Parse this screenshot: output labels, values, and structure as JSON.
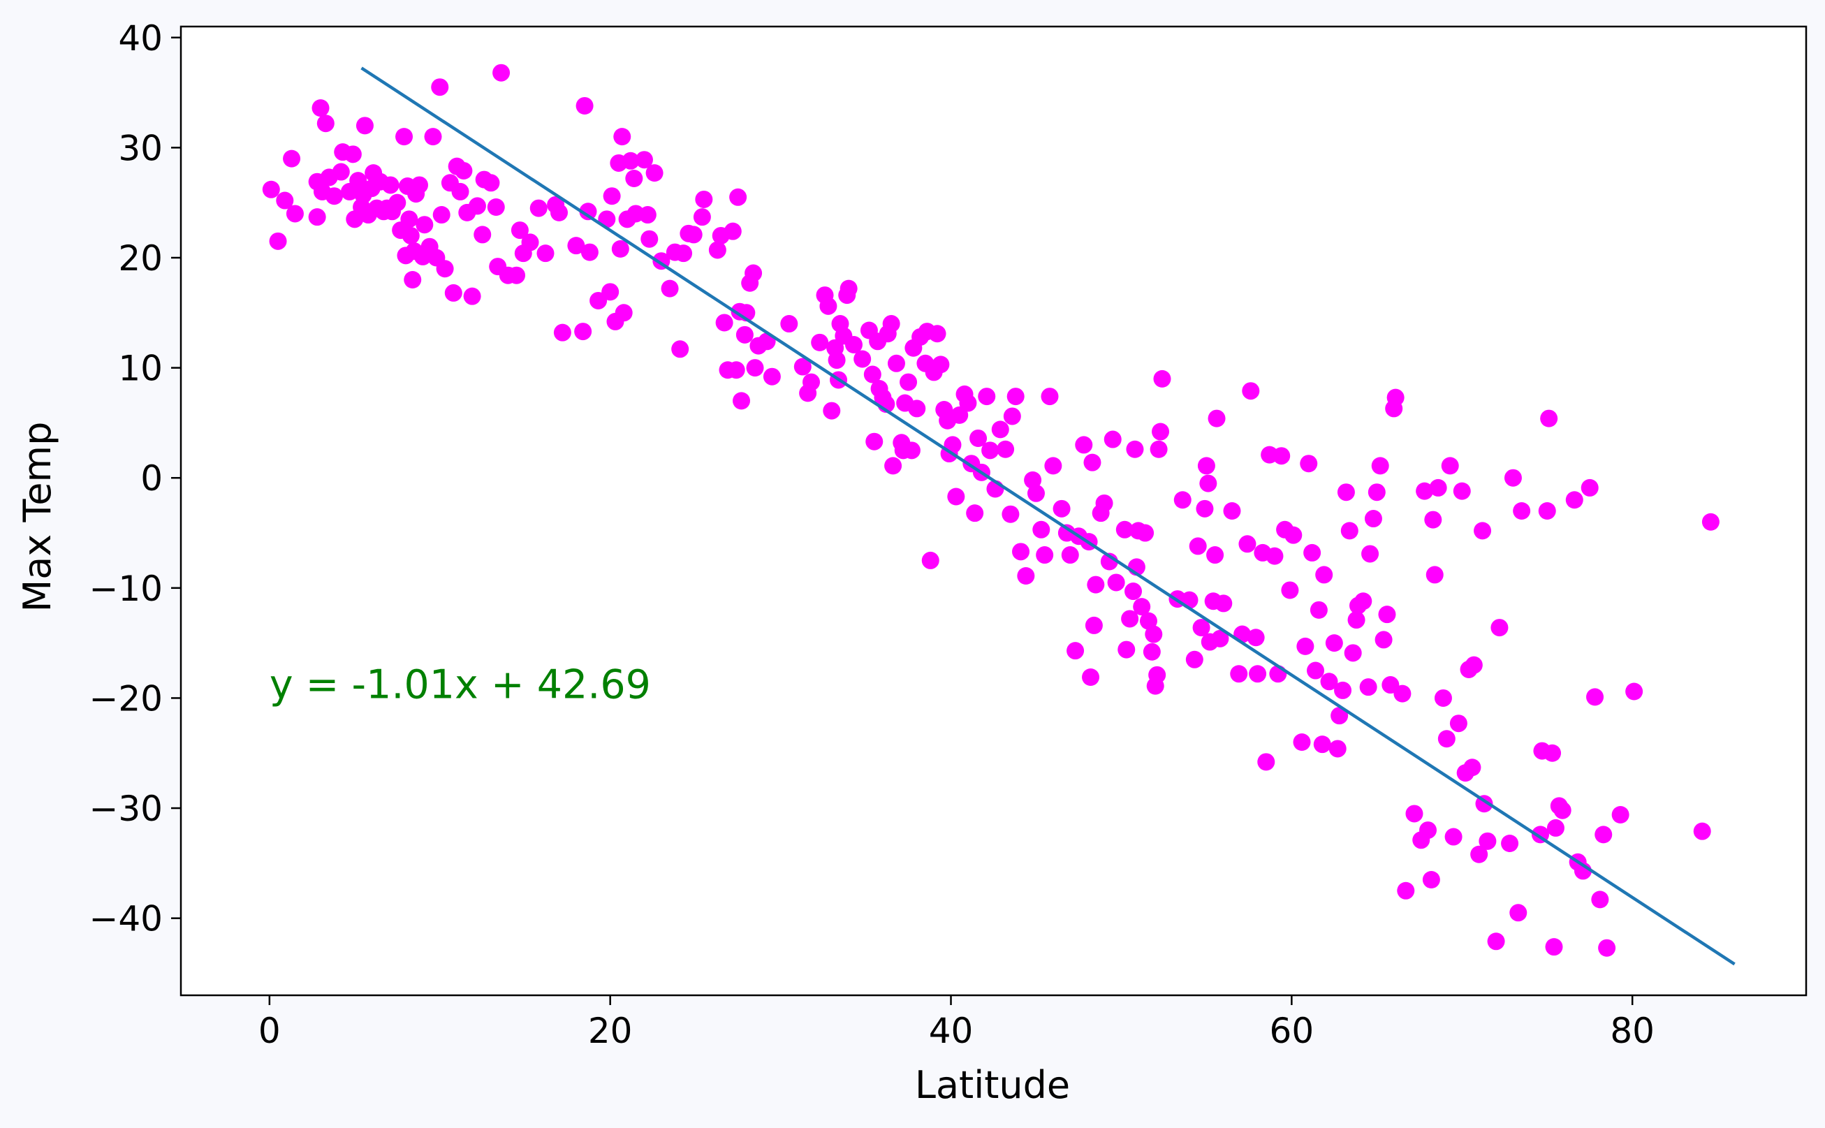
{
  "chart_data": {
    "type": "scatter",
    "title": "",
    "xlabel": "Latitude",
    "ylabel": "Max Temp",
    "xlim": [
      -5.2,
      90.2
    ],
    "ylim": [
      -47.0,
      41.0
    ],
    "xticks": [
      0,
      20,
      40,
      60,
      80
    ],
    "yticks": [
      40,
      30,
      20,
      10,
      0,
      -10,
      -20,
      -30,
      -40
    ],
    "grid": false,
    "legend": "none",
    "colors": {
      "points": "#ff00ff",
      "line": "#1f77b4",
      "annotation": "#008000",
      "background": "#f8f9fd",
      "plot_background": "#ffffff"
    },
    "annotation": {
      "text": "y = -1.01x + 42.69",
      "x": 0,
      "y": -20
    },
    "regression": {
      "slope": -1.01,
      "intercept": 42.69,
      "x_start": 5.4,
      "x_end": 86.0
    },
    "points": [
      [
        0.1,
        26.2
      ],
      [
        0.5,
        21.5
      ],
      [
        0.9,
        25.2
      ],
      [
        1.3,
        29.0
      ],
      [
        1.5,
        24.0
      ],
      [
        2.8,
        23.7
      ],
      [
        2.8,
        26.9
      ],
      [
        3.0,
        33.6
      ],
      [
        3.1,
        26.0
      ],
      [
        3.3,
        32.2
      ],
      [
        3.5,
        27.3
      ],
      [
        3.8,
        25.6
      ],
      [
        4.2,
        27.8
      ],
      [
        4.3,
        29.6
      ],
      [
        4.7,
        26.0
      ],
      [
        4.9,
        29.4
      ],
      [
        5.0,
        23.5
      ],
      [
        5.2,
        27.0
      ],
      [
        5.4,
        24.6
      ],
      [
        5.5,
        25.7
      ],
      [
        5.6,
        32.0
      ],
      [
        5.8,
        23.9
      ],
      [
        6.0,
        26.3
      ],
      [
        6.1,
        27.7
      ],
      [
        6.3,
        24.5
      ],
      [
        6.5,
        26.9
      ],
      [
        6.7,
        24.2
      ],
      [
        6.9,
        24.5
      ],
      [
        7.1,
        26.6
      ],
      [
        7.2,
        24.2
      ],
      [
        7.5,
        25.0
      ],
      [
        7.7,
        22.5
      ],
      [
        7.9,
        31.0
      ],
      [
        8.0,
        20.2
      ],
      [
        8.1,
        26.5
      ],
      [
        8.2,
        23.5
      ],
      [
        8.3,
        22.0
      ],
      [
        8.4,
        18.0
      ],
      [
        8.5,
        20.6
      ],
      [
        8.6,
        25.8
      ],
      [
        8.8,
        26.6
      ],
      [
        9.0,
        20.1
      ],
      [
        9.1,
        23.0
      ],
      [
        9.4,
        21.0
      ],
      [
        9.6,
        31.0
      ],
      [
        9.8,
        20.0
      ],
      [
        10.0,
        35.5
      ],
      [
        10.1,
        23.9
      ],
      [
        10.3,
        19.0
      ],
      [
        10.6,
        26.8
      ],
      [
        10.8,
        16.8
      ],
      [
        11.0,
        28.3
      ],
      [
        11.2,
        26.0
      ],
      [
        11.4,
        27.9
      ],
      [
        11.6,
        24.1
      ],
      [
        11.9,
        16.5
      ],
      [
        12.2,
        24.7
      ],
      [
        12.5,
        22.1
      ],
      [
        12.6,
        27.1
      ],
      [
        13.0,
        26.8
      ],
      [
        13.3,
        24.6
      ],
      [
        13.4,
        19.2
      ],
      [
        13.6,
        36.8
      ],
      [
        14.0,
        18.4
      ],
      [
        14.5,
        18.4
      ],
      [
        14.7,
        22.5
      ],
      [
        14.9,
        20.4
      ],
      [
        15.3,
        21.4
      ],
      [
        15.8,
        24.5
      ],
      [
        16.2,
        20.4
      ],
      [
        16.8,
        24.8
      ],
      [
        17.0,
        24.1
      ],
      [
        17.2,
        13.2
      ],
      [
        18.0,
        21.1
      ],
      [
        18.4,
        13.3
      ],
      [
        18.5,
        33.8
      ],
      [
        18.7,
        24.2
      ],
      [
        18.8,
        20.5
      ],
      [
        19.3,
        16.1
      ],
      [
        19.8,
        23.5
      ],
      [
        20.0,
        16.9
      ],
      [
        20.1,
        25.6
      ],
      [
        20.3,
        14.2
      ],
      [
        20.5,
        28.6
      ],
      [
        20.6,
        20.8
      ],
      [
        20.7,
        31.0
      ],
      [
        20.8,
        15.0
      ],
      [
        21.0,
        23.5
      ],
      [
        21.2,
        28.8
      ],
      [
        21.4,
        27.2
      ],
      [
        21.5,
        24.0
      ],
      [
        22.0,
        28.9
      ],
      [
        22.2,
        23.9
      ],
      [
        22.3,
        21.7
      ],
      [
        22.6,
        27.7
      ],
      [
        23.0,
        19.7
      ],
      [
        23.5,
        17.2
      ],
      [
        23.8,
        20.5
      ],
      [
        24.1,
        11.7
      ],
      [
        24.3,
        20.4
      ],
      [
        24.6,
        22.2
      ],
      [
        24.9,
        22.1
      ],
      [
        25.4,
        23.7
      ],
      [
        25.5,
        25.3
      ],
      [
        26.3,
        20.7
      ],
      [
        26.5,
        22.0
      ],
      [
        26.7,
        14.1
      ],
      [
        26.9,
        9.8
      ],
      [
        27.2,
        22.4
      ],
      [
        27.4,
        9.8
      ],
      [
        27.5,
        25.5
      ],
      [
        27.6,
        15.1
      ],
      [
        27.7,
        7.0
      ],
      [
        27.9,
        13.0
      ],
      [
        28.0,
        15.0
      ],
      [
        28.2,
        17.7
      ],
      [
        28.4,
        18.6
      ],
      [
        28.5,
        10.0
      ],
      [
        28.7,
        12.0
      ],
      [
        29.2,
        12.4
      ],
      [
        29.5,
        9.2
      ],
      [
        30.5,
        14.0
      ],
      [
        31.3,
        10.1
      ],
      [
        31.6,
        7.7
      ],
      [
        31.8,
        8.7
      ],
      [
        32.3,
        12.3
      ],
      [
        32.6,
        16.6
      ],
      [
        32.8,
        15.6
      ],
      [
        33.0,
        6.1
      ],
      [
        33.2,
        11.8
      ],
      [
        33.3,
        10.7
      ],
      [
        33.4,
        8.9
      ],
      [
        33.5,
        14.0
      ],
      [
        33.7,
        12.9
      ],
      [
        33.9,
        16.6
      ],
      [
        34.0,
        17.2
      ],
      [
        34.3,
        12.1
      ],
      [
        34.8,
        10.8
      ],
      [
        35.2,
        13.4
      ],
      [
        35.4,
        9.4
      ],
      [
        35.5,
        3.3
      ],
      [
        35.7,
        12.4
      ],
      [
        35.8,
        8.1
      ],
      [
        36.0,
        7.3
      ],
      [
        36.2,
        6.7
      ],
      [
        36.3,
        13.1
      ],
      [
        36.5,
        14.0
      ],
      [
        36.6,
        1.1
      ],
      [
        36.8,
        10.4
      ],
      [
        37.1,
        3.2
      ],
      [
        37.2,
        2.5
      ],
      [
        37.3,
        6.8
      ],
      [
        37.5,
        8.7
      ],
      [
        37.7,
        2.5
      ],
      [
        37.8,
        11.8
      ],
      [
        38.0,
        6.3
      ],
      [
        38.2,
        12.8
      ],
      [
        38.5,
        10.4
      ],
      [
        38.6,
        13.3
      ],
      [
        38.8,
        -7.5
      ],
      [
        39.0,
        9.6
      ],
      [
        39.2,
        13.1
      ],
      [
        39.4,
        10.3
      ],
      [
        39.6,
        6.2
      ],
      [
        39.8,
        5.2
      ],
      [
        39.9,
        2.2
      ],
      [
        40.1,
        3.0
      ],
      [
        40.3,
        -1.7
      ],
      [
        40.5,
        5.7
      ],
      [
        40.8,
        7.6
      ],
      [
        41.0,
        6.8
      ],
      [
        41.2,
        1.3
      ],
      [
        41.4,
        -3.2
      ],
      [
        41.6,
        3.6
      ],
      [
        41.8,
        0.5
      ],
      [
        42.1,
        7.4
      ],
      [
        42.3,
        2.5
      ],
      [
        42.6,
        -1.0
      ],
      [
        42.9,
        4.4
      ],
      [
        43.2,
        2.6
      ],
      [
        43.5,
        -3.3
      ],
      [
        43.6,
        5.6
      ],
      [
        43.8,
        7.4
      ],
      [
        44.1,
        -6.7
      ],
      [
        44.4,
        -8.9
      ],
      [
        44.8,
        -0.2
      ],
      [
        45.0,
        -1.4
      ],
      [
        45.3,
        -4.7
      ],
      [
        45.5,
        -7.0
      ],
      [
        45.8,
        7.4
      ],
      [
        46.0,
        1.1
      ],
      [
        46.5,
        -2.8
      ],
      [
        46.8,
        -5.0
      ],
      [
        47.0,
        -7.0
      ],
      [
        47.3,
        -15.7
      ],
      [
        47.5,
        -5.3
      ],
      [
        47.8,
        3.0
      ],
      [
        48.1,
        -5.8
      ],
      [
        48.2,
        -18.1
      ],
      [
        48.3,
        1.4
      ],
      [
        48.4,
        -13.4
      ],
      [
        48.5,
        -9.7
      ],
      [
        48.8,
        -3.2
      ],
      [
        49.0,
        -2.3
      ],
      [
        49.3,
        -7.6
      ],
      [
        49.5,
        3.5
      ],
      [
        49.7,
        -9.5
      ],
      [
        50.2,
        -4.7
      ],
      [
        50.3,
        -15.6
      ],
      [
        50.5,
        -12.8
      ],
      [
        50.7,
        -10.3
      ],
      [
        50.8,
        2.6
      ],
      [
        50.9,
        -8.1
      ],
      [
        51.0,
        -4.8
      ],
      [
        51.2,
        -11.7
      ],
      [
        51.4,
        -5.0
      ],
      [
        51.6,
        -13.0
      ],
      [
        51.8,
        -15.8
      ],
      [
        51.9,
        -14.2
      ],
      [
        52.0,
        -18.9
      ],
      [
        52.1,
        -17.9
      ],
      [
        52.2,
        2.6
      ],
      [
        52.3,
        4.2
      ],
      [
        52.4,
        9.0
      ],
      [
        53.3,
        -11.0
      ],
      [
        53.6,
        -2.0
      ],
      [
        54.0,
        -11.1
      ],
      [
        54.3,
        -16.5
      ],
      [
        54.5,
        -6.2
      ],
      [
        54.7,
        -13.6
      ],
      [
        54.9,
        -2.8
      ],
      [
        55.0,
        1.1
      ],
      [
        55.1,
        -0.5
      ],
      [
        55.2,
        -14.9
      ],
      [
        55.4,
        -11.2
      ],
      [
        55.5,
        -7.0
      ],
      [
        55.6,
        5.4
      ],
      [
        55.8,
        -14.6
      ],
      [
        56.0,
        -11.4
      ],
      [
        56.5,
        -3.0
      ],
      [
        56.9,
        -17.8
      ],
      [
        57.1,
        -14.2
      ],
      [
        57.4,
        -6.0
      ],
      [
        57.6,
        7.9
      ],
      [
        57.9,
        -14.5
      ],
      [
        58.0,
        -17.8
      ],
      [
        58.3,
        -6.8
      ],
      [
        58.5,
        -25.8
      ],
      [
        58.7,
        2.1
      ],
      [
        59.0,
        -7.1
      ],
      [
        59.2,
        -17.8
      ],
      [
        59.4,
        2.0
      ],
      [
        59.6,
        -4.7
      ],
      [
        59.9,
        -10.2
      ],
      [
        60.1,
        -5.2
      ],
      [
        60.6,
        -24.0
      ],
      [
        60.8,
        -15.3
      ],
      [
        61.0,
        1.3
      ],
      [
        61.2,
        -6.8
      ],
      [
        61.4,
        -17.5
      ],
      [
        61.6,
        -12.0
      ],
      [
        61.8,
        -24.2
      ],
      [
        61.9,
        -8.8
      ],
      [
        62.2,
        -18.5
      ],
      [
        62.5,
        -15.0
      ],
      [
        62.7,
        -24.6
      ],
      [
        62.8,
        -21.6
      ],
      [
        63.0,
        -19.3
      ],
      [
        63.2,
        -1.3
      ],
      [
        63.4,
        -4.8
      ],
      [
        63.6,
        -15.9
      ],
      [
        63.8,
        -12.9
      ],
      [
        63.9,
        -11.6
      ],
      [
        64.2,
        -11.2
      ],
      [
        64.5,
        -19.0
      ],
      [
        64.6,
        -6.9
      ],
      [
        64.8,
        -3.7
      ],
      [
        65.0,
        -1.3
      ],
      [
        65.2,
        1.1
      ],
      [
        65.4,
        -14.7
      ],
      [
        65.6,
        -12.4
      ],
      [
        65.8,
        -18.8
      ],
      [
        66.0,
        6.3
      ],
      [
        66.1,
        7.3
      ],
      [
        66.5,
        -19.6
      ],
      [
        66.7,
        -37.5
      ],
      [
        67.2,
        -30.5
      ],
      [
        67.6,
        -32.9
      ],
      [
        67.8,
        -1.2
      ],
      [
        68.0,
        -32.0
      ],
      [
        68.2,
        -36.5
      ],
      [
        68.3,
        -3.8
      ],
      [
        68.4,
        -8.8
      ],
      [
        68.6,
        -0.9
      ],
      [
        68.9,
        -20.0
      ],
      [
        69.1,
        -23.7
      ],
      [
        69.3,
        1.1
      ],
      [
        69.5,
        -32.6
      ],
      [
        69.8,
        -22.3
      ],
      [
        70.0,
        -1.2
      ],
      [
        70.2,
        -26.8
      ],
      [
        70.4,
        -17.4
      ],
      [
        70.6,
        -26.3
      ],
      [
        70.7,
        -17.0
      ],
      [
        71.0,
        -34.2
      ],
      [
        71.2,
        -4.8
      ],
      [
        71.3,
        -29.6
      ],
      [
        71.5,
        -33.0
      ],
      [
        72.0,
        -42.1
      ],
      [
        72.2,
        -13.6
      ],
      [
        72.8,
        -33.2
      ],
      [
        73.0,
        0.0
      ],
      [
        73.3,
        -39.5
      ],
      [
        73.5,
        -3.0
      ],
      [
        74.6,
        -32.4
      ],
      [
        74.7,
        -24.8
      ],
      [
        75.0,
        -3.0
      ],
      [
        75.1,
        5.4
      ],
      [
        75.3,
        -25.0
      ],
      [
        75.4,
        -42.6
      ],
      [
        75.5,
        -31.8
      ],
      [
        75.7,
        -29.8
      ],
      [
        75.9,
        -30.2
      ],
      [
        76.6,
        -2.0
      ],
      [
        76.8,
        -34.9
      ],
      [
        77.1,
        -35.7
      ],
      [
        77.5,
        -0.9
      ],
      [
        77.8,
        -19.9
      ],
      [
        78.1,
        -38.3
      ],
      [
        78.3,
        -32.4
      ],
      [
        78.5,
        -42.7
      ],
      [
        79.3,
        -30.6
      ],
      [
        80.1,
        -19.4
      ],
      [
        84.1,
        -32.1
      ],
      [
        84.6,
        -4.0
      ]
    ]
  }
}
